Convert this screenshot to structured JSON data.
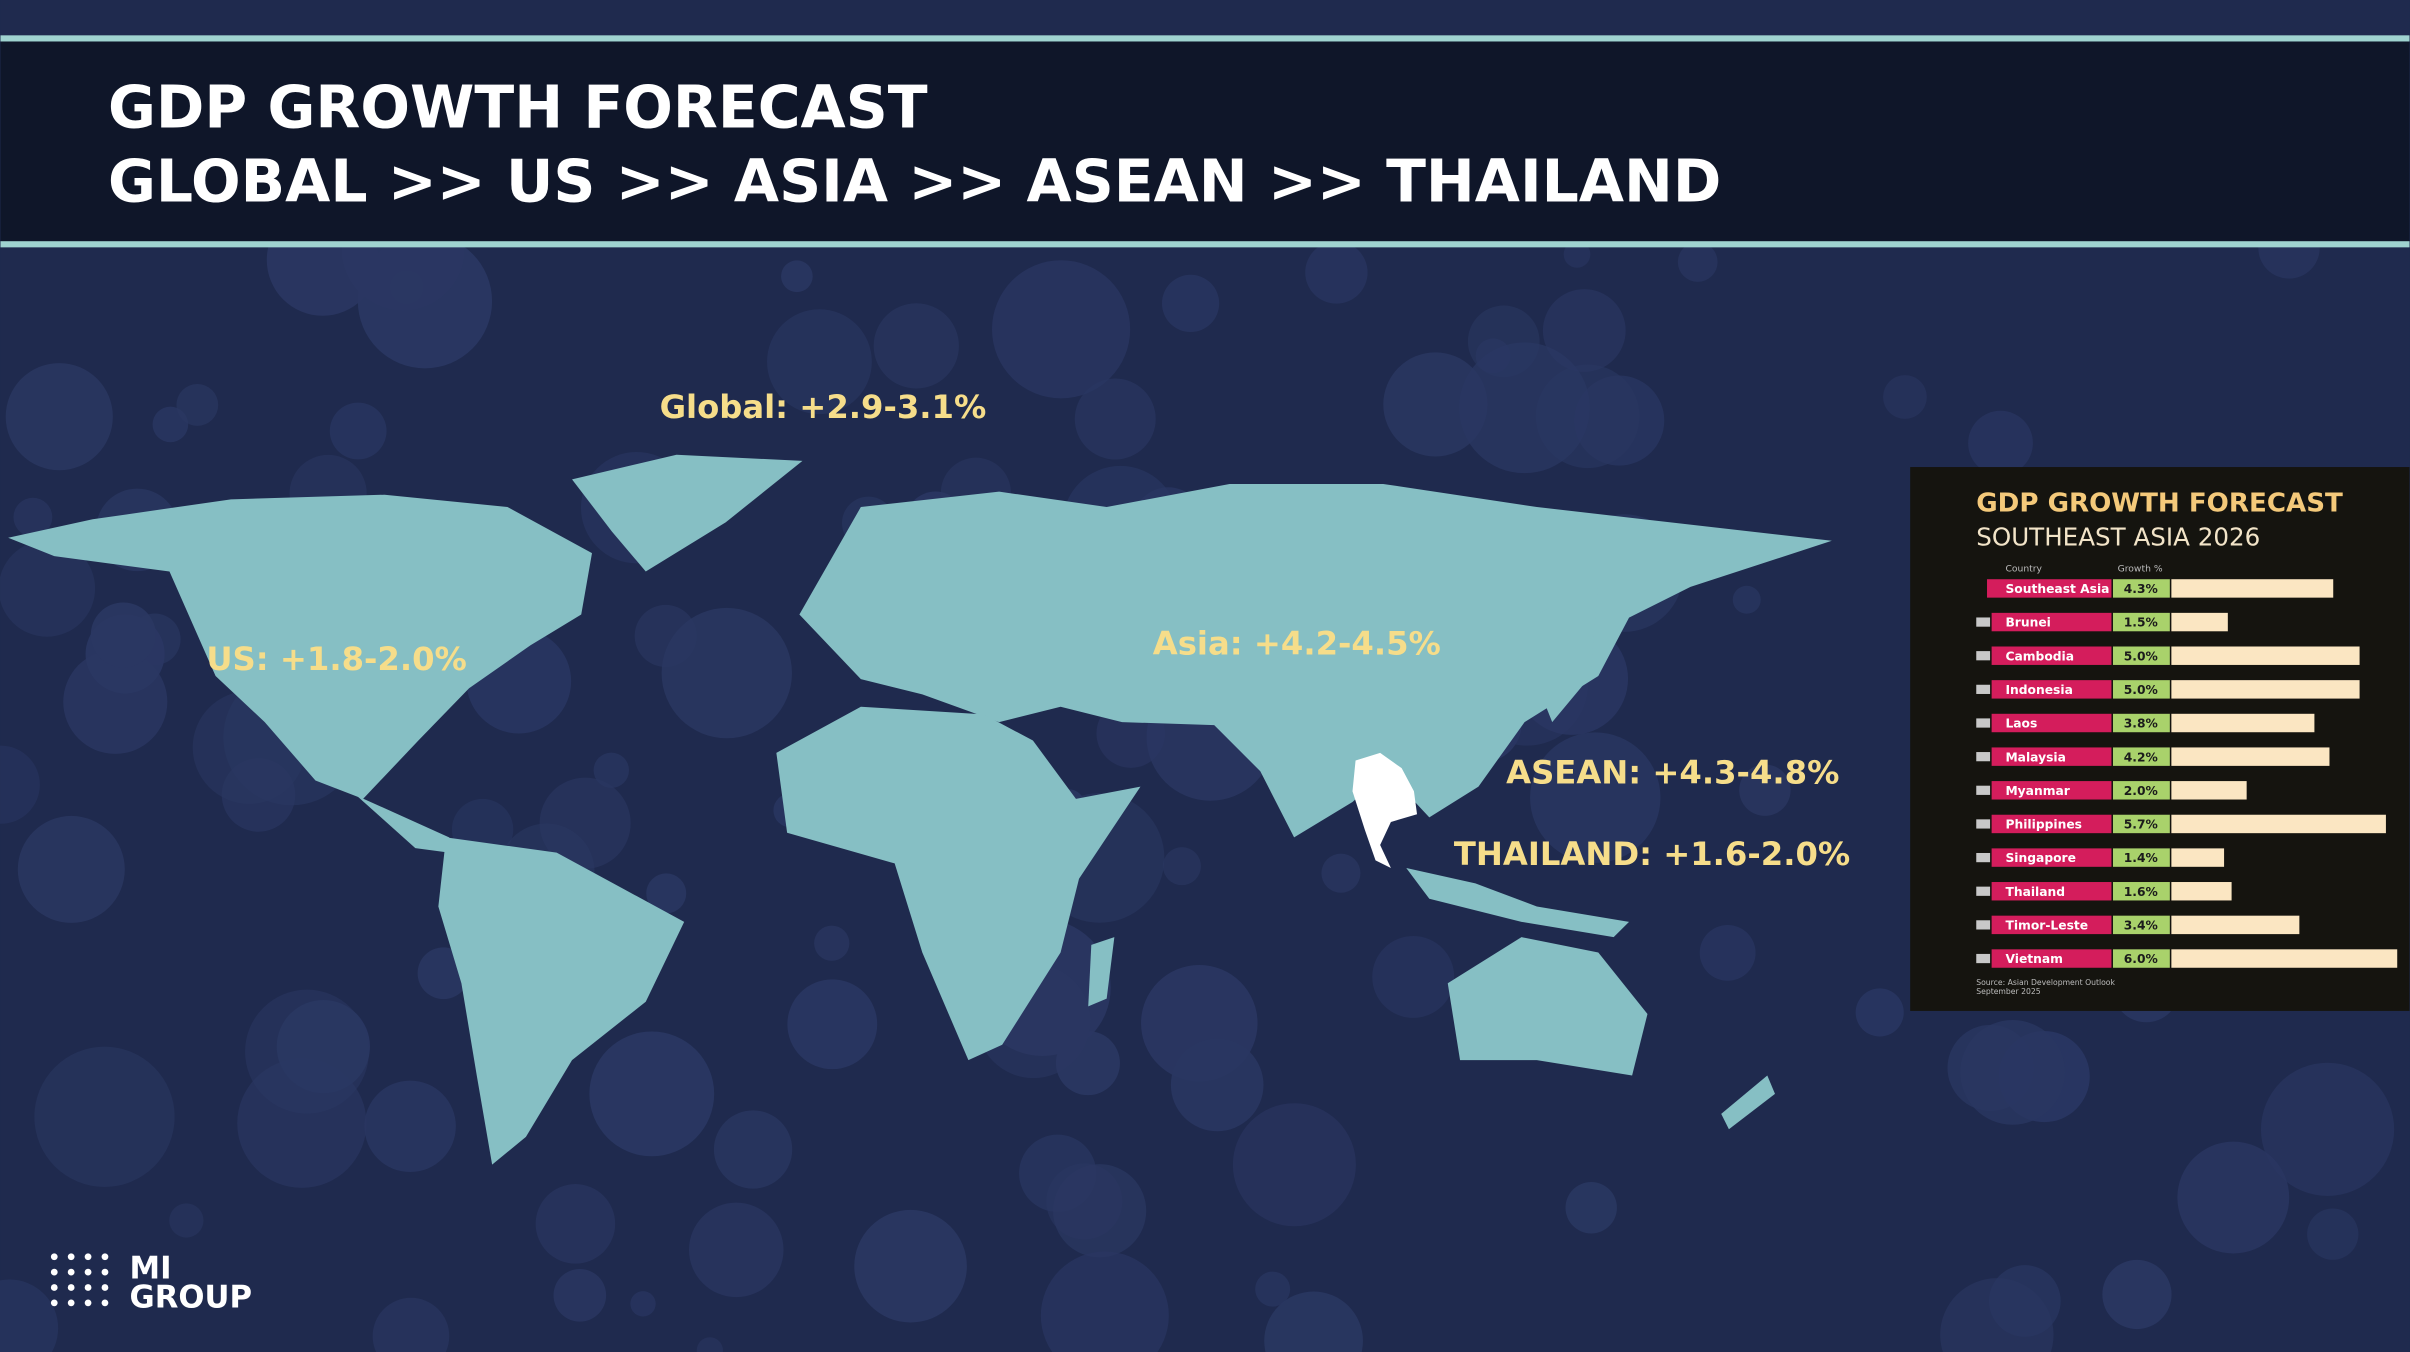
{
  "header": {
    "title_line1": "GDP GROWTH FORECAST",
    "title_line2": "GLOBAL >> US >> ASIA >> ASEAN >> THAILAND"
  },
  "map_labels": [
    "Global: +2.9-3.1%",
    "US: +1.8-2.0%",
    "Asia: +4.2-4.5%",
    "ASEAN: +4.3-4.8%",
    "THAILAND: +1.6-2.0%"
  ],
  "logo": {
    "line1": "MI",
    "line2": "GROUP"
  },
  "chart_data": {
    "type": "bar",
    "orientation": "horizontal",
    "title": "GDP GROWTH FORECAST",
    "subtitle": "SOUTHEAST ASIA 2026",
    "category_label": "Country",
    "value_label": "Growth %",
    "categories": [
      "Southeast Asia",
      "Brunei",
      "Cambodia",
      "Indonesia",
      "Laos",
      "Malaysia",
      "Myanmar",
      "Philippines",
      "Singapore",
      "Thailand",
      "Timor-Leste",
      "Vietnam"
    ],
    "values": [
      4.3,
      1.5,
      5.0,
      5.0,
      3.8,
      4.2,
      2.0,
      5.7,
      1.4,
      1.6,
      3.4,
      6.0
    ],
    "value_labels": [
      "4.3%",
      "1.5%",
      "5.0%",
      "5.0%",
      "3.8%",
      "4.2%",
      "2.0%",
      "5.7%",
      "1.4%",
      "1.6%",
      "3.4%",
      "6.0%"
    ],
    "color": "#fbe6c2",
    "label_color": "#d41d5c",
    "value_box_color": "#a9d26b",
    "source": [
      "Source: Asian Development Outlook",
      "September 2025"
    ]
  }
}
